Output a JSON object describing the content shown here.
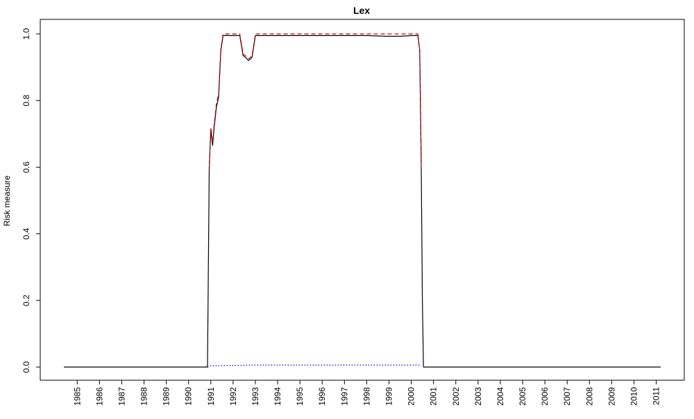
{
  "chart_data": {
    "type": "line",
    "title": "Lex",
    "xlabel": "",
    "ylabel": "Risk measure",
    "ylim": [
      0,
      1
    ],
    "yticks": [
      "0.0",
      "0.2",
      "0.4",
      "0.6",
      "0.8",
      "1.0"
    ],
    "xticks": [
      "1985",
      "1986",
      "1987",
      "1988",
      "1989",
      "1990",
      "1991",
      "1992",
      "1993",
      "1994",
      "1995",
      "1996",
      "1997",
      "1998",
      "1999",
      "2000",
      "2001",
      "2002",
      "2003",
      "2004",
      "2005",
      "2006",
      "2007",
      "2008",
      "2009",
      "2010",
      "2011"
    ],
    "xlim": [
      1984.4,
      2011.2
    ],
    "grid": false,
    "legend": "none",
    "series": [
      {
        "color": "#000000",
        "dash": "solid",
        "x": [
          1984.4,
          1990.85,
          1990.93,
          1991.0,
          1991.08,
          1991.15,
          1991.25,
          1991.35,
          1991.45,
          1991.55,
          1991.7,
          1992.0,
          1992.3,
          1992.45,
          1992.55,
          1992.7,
          1992.85,
          1993.0,
          1993.3,
          1994.0,
          1995.0,
          1996.0,
          1997.0,
          1998.0,
          1998.9,
          1999.5,
          2000.0,
          2000.3,
          2000.38,
          2000.45,
          2000.5,
          2000.55,
          2011.2
        ],
        "y": [
          0.0,
          0.0,
          0.6,
          0.71,
          0.665,
          0.72,
          0.78,
          0.81,
          0.95,
          0.995,
          0.995,
          0.995,
          0.995,
          0.935,
          0.93,
          0.92,
          0.93,
          0.995,
          0.995,
          0.995,
          0.995,
          0.995,
          0.995,
          0.995,
          0.993,
          0.993,
          0.995,
          0.995,
          0.95,
          0.6,
          0.2,
          0.0,
          0.0
        ]
      },
      {
        "color": "#cc0000",
        "dash": "dashed",
        "x": [
          1990.93,
          1991.0,
          1991.08,
          1991.15,
          1991.25,
          1991.35,
          1991.45,
          1991.55,
          1992.3,
          1992.45,
          1992.55,
          1992.7,
          1992.85,
          1993.0,
          1994.0,
          1996.0,
          1998.0,
          2000.0,
          2000.3,
          2000.38,
          2000.45
        ],
        "y": [
          0.6,
          0.72,
          0.675,
          0.73,
          0.79,
          0.82,
          0.955,
          1.0,
          1.0,
          0.94,
          0.935,
          0.925,
          0.935,
          1.0,
          1.0,
          1.0,
          1.0,
          1.0,
          1.0,
          0.95,
          0.6
        ]
      },
      {
        "color": "#0000cc",
        "dash": "dotted",
        "x": [
          1990.85,
          1991.0,
          1992.0,
          1993.0,
          1994.0,
          1995.0,
          1996.0,
          1997.0,
          1998.0,
          1999.0,
          2000.0,
          2000.45
        ],
        "y": [
          0.0,
          0.004,
          0.005,
          0.006,
          0.006,
          0.006,
          0.006,
          0.006,
          0.006,
          0.006,
          0.006,
          0.006
        ]
      }
    ]
  }
}
